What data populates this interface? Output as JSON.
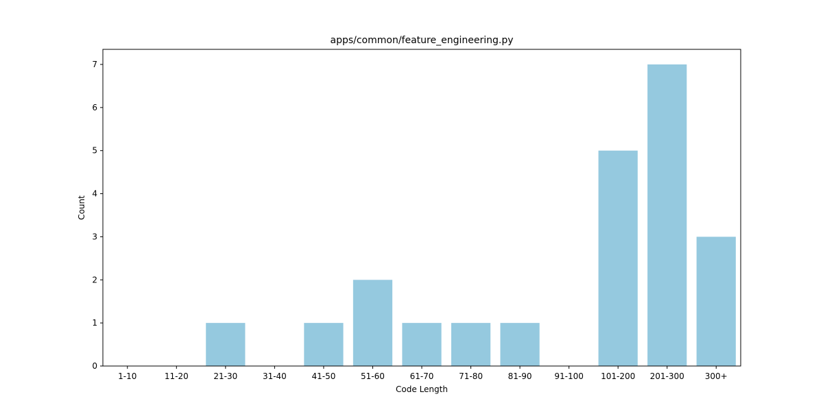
{
  "chart_data": {
    "type": "bar",
    "title": "apps/common/feature_engineering.py",
    "xlabel": "Code Length",
    "ylabel": "Count",
    "categories": [
      "1-10",
      "11-20",
      "21-30",
      "31-40",
      "41-50",
      "51-60",
      "61-70",
      "71-80",
      "81-90",
      "91-100",
      "101-200",
      "201-300",
      "300+"
    ],
    "values": [
      0,
      0,
      1,
      0,
      1,
      2,
      1,
      1,
      1,
      0,
      5,
      7,
      3
    ],
    "ylim": [
      0,
      7.35
    ],
    "yticks": [
      0,
      1,
      2,
      3,
      4,
      5,
      6,
      7
    ],
    "grid": false,
    "bar_color": "#95c9df"
  }
}
